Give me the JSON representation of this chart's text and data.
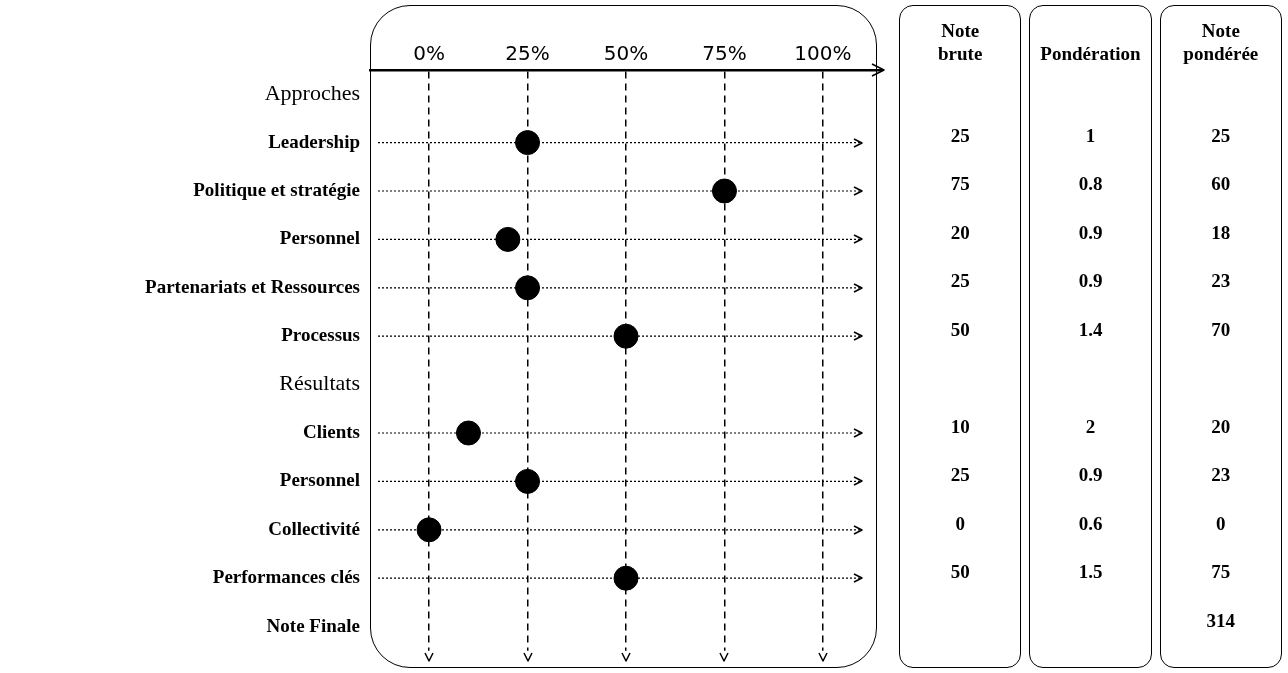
{
  "chart_data": [
    {
      "type": "scatter",
      "orientation": "horizontal",
      "categories": [
        "Approches",
        "Leadership",
        "Politique et stratégie",
        "Personnel",
        "Partenariats et Ressources",
        "Processus",
        "Résultats",
        "Clients",
        "Personnel",
        "Collectivité",
        "Performances clés",
        "Note Finale"
      ],
      "values": [
        null,
        25,
        75,
        20,
        25,
        50,
        null,
        10,
        25,
        0,
        50,
        null
      ],
      "color": "#000000",
      "marker": "circle",
      "xlim": [
        -15,
        115
      ],
      "xticks": [
        {
          "value": 0,
          "label": "0%"
        },
        {
          "value": 25,
          "label": "25%"
        },
        {
          "value": 50,
          "label": "50%"
        },
        {
          "value": 75,
          "label": "75%"
        },
        {
          "value": 100,
          "label": "100%"
        }
      ],
      "grid": "x"
    },
    {
      "type": "other",
      "annotations": [
        "Note brute",
        "Pondération",
        "Note pondérée",
        "25",
        "1",
        "25",
        "75",
        "0.8",
        "60",
        "20",
        "0.9",
        "18",
        "25",
        "0.9",
        "23",
        "50",
        "1.4",
        "70",
        "10",
        "2",
        "20",
        "25",
        "0.9",
        "23",
        "0",
        "0.6",
        "0",
        "50",
        "1.5",
        "75",
        "314"
      ]
    }
  ]
}
